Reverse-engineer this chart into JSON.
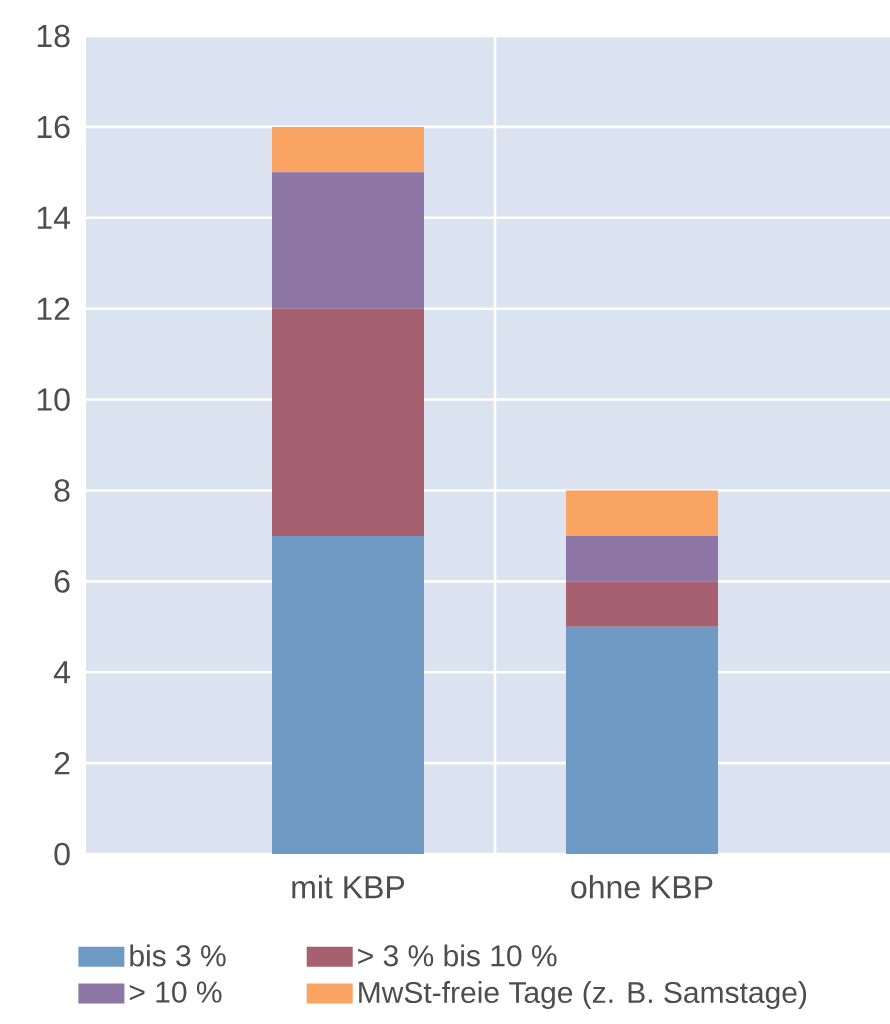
{
  "chart_data": {
    "type": "bar",
    "stacked": true,
    "categories": [
      "mit KBP",
      "ohne KBP"
    ],
    "series": [
      {
        "name": "bis 3 %",
        "color": "#6f9ac4",
        "values": [
          7,
          5
        ]
      },
      {
        "name": "> 3 % bis 10 %",
        "color": "#a7606f",
        "values": [
          5,
          1
        ]
      },
      {
        "name": "> 10 %",
        "color": "#8d75a6",
        "values": [
          3,
          1
        ]
      },
      {
        "name": "MwSt-freie Tage (z. B. Samstage)",
        "color": "#f9a463",
        "values": [
          1,
          1
        ]
      }
    ],
    "ylim": [
      0,
      18
    ],
    "yticks": [
      0,
      2,
      4,
      6,
      8,
      10,
      12,
      14,
      16,
      18
    ],
    "grid": true,
    "legend": "bottom"
  }
}
